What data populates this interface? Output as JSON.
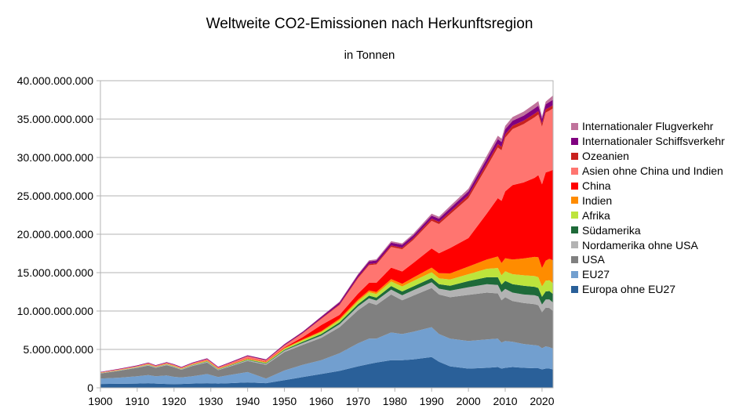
{
  "chart_data": {
    "type": "area",
    "stacked": true,
    "title": "Weltweite CO2-Emissionen nach Herkunftsregion",
    "subtitle": "in Tonnen",
    "xlabel": "",
    "ylabel": "",
    "xlim": [
      1900,
      2023
    ],
    "ylim": [
      0,
      40000000000
    ],
    "grid": true,
    "legend_position": "right",
    "x_ticks": [
      "1900",
      "1910",
      "1920",
      "1930",
      "1940",
      "1950",
      "1960",
      "1970",
      "1980",
      "1990",
      "2000",
      "2010",
      "2020"
    ],
    "y_ticks": [
      "0",
      "5.000.000.000",
      "10.000.000.000",
      "15.000.000.000",
      "20.000.000.000",
      "25.000.000.000",
      "30.000.000.000",
      "35.000.000.000",
      "40.000.000.000"
    ],
    "x": [
      1900,
      1905,
      1910,
      1913,
      1915,
      1918,
      1920,
      1922,
      1925,
      1929,
      1932,
      1935,
      1940,
      1945,
      1950,
      1955,
      1960,
      1965,
      1970,
      1973,
      1975,
      1979,
      1982,
      1985,
      1990,
      1992,
      1995,
      2000,
      2005,
      2008,
      2009,
      2010,
      2012,
      2015,
      2018,
      2019,
      2020,
      2021,
      2022,
      2023
    ],
    "series": [
      {
        "name": "Europa ohne EU27",
        "color": "#2a6099",
        "values": [
          0.5,
          0.52,
          0.55,
          0.6,
          0.55,
          0.5,
          0.48,
          0.5,
          0.55,
          0.6,
          0.55,
          0.6,
          0.7,
          0.6,
          1.0,
          1.4,
          1.8,
          2.2,
          2.8,
          3.1,
          3.3,
          3.6,
          3.6,
          3.7,
          4.0,
          3.4,
          2.8,
          2.5,
          2.6,
          2.7,
          2.5,
          2.6,
          2.7,
          2.6,
          2.55,
          2.55,
          2.4,
          2.5,
          2.5,
          2.4
        ]
      },
      {
        "name": "EU27",
        "color": "#729fcf",
        "values": [
          0.7,
          0.8,
          0.95,
          1.05,
          0.95,
          1.1,
          0.95,
          0.85,
          0.95,
          1.2,
          0.85,
          1.05,
          1.35,
          0.6,
          1.25,
          1.6,
          1.8,
          2.3,
          3.0,
          3.3,
          3.1,
          3.6,
          3.4,
          3.6,
          3.9,
          3.6,
          3.6,
          3.6,
          3.7,
          3.7,
          3.4,
          3.5,
          3.3,
          3.1,
          3.0,
          2.95,
          2.75,
          2.9,
          2.8,
          2.7
        ]
      },
      {
        "name": "USA",
        "color": "#808080",
        "values": [
          0.66,
          0.9,
          1.1,
          1.25,
          1.1,
          1.35,
          1.25,
          1.0,
          1.35,
          1.5,
          0.9,
          1.1,
          1.45,
          1.8,
          2.4,
          2.6,
          2.9,
          3.4,
          4.3,
          4.7,
          4.4,
          4.95,
          4.4,
          4.7,
          5.1,
          5.15,
          5.4,
          6.0,
          6.1,
          5.9,
          5.5,
          5.7,
          5.3,
          5.35,
          5.35,
          5.25,
          4.7,
          5.05,
          5.1,
          4.9
        ]
      },
      {
        "name": "Nordamerika ohne USA",
        "color": "#b3b3b3",
        "values": [
          0.04,
          0.05,
          0.07,
          0.08,
          0.07,
          0.08,
          0.08,
          0.07,
          0.08,
          0.1,
          0.07,
          0.08,
          0.1,
          0.12,
          0.2,
          0.25,
          0.3,
          0.38,
          0.5,
          0.55,
          0.57,
          0.65,
          0.65,
          0.7,
          0.75,
          0.76,
          0.85,
          1.0,
          1.1,
          1.1,
          1.05,
          1.08,
          1.1,
          1.1,
          1.15,
          1.15,
          1.0,
          1.05,
          1.1,
          1.1
        ]
      },
      {
        "name": "Südamerika",
        "color": "#1e6a39",
        "values": [
          0.01,
          0.01,
          0.02,
          0.03,
          0.03,
          0.03,
          0.03,
          0.03,
          0.04,
          0.05,
          0.04,
          0.05,
          0.06,
          0.08,
          0.1,
          0.15,
          0.2,
          0.25,
          0.3,
          0.35,
          0.37,
          0.45,
          0.5,
          0.5,
          0.55,
          0.58,
          0.65,
          0.8,
          0.9,
          1.0,
          1.0,
          1.05,
          1.1,
          1.15,
          1.1,
          1.1,
          1.0,
          1.05,
          1.1,
          1.1
        ]
      },
      {
        "name": "Afrika",
        "color": "#bde43c",
        "values": [
          0.02,
          0.02,
          0.03,
          0.04,
          0.03,
          0.04,
          0.04,
          0.04,
          0.05,
          0.06,
          0.05,
          0.06,
          0.08,
          0.1,
          0.15,
          0.2,
          0.25,
          0.3,
          0.38,
          0.45,
          0.48,
          0.6,
          0.65,
          0.7,
          0.75,
          0.77,
          0.8,
          0.9,
          1.1,
          1.2,
          1.2,
          1.25,
          1.3,
          1.35,
          1.4,
          1.4,
          1.35,
          1.4,
          1.4,
          1.4
        ]
      },
      {
        "name": "Indien",
        "color": "#ff8c00",
        "values": [
          0.03,
          0.04,
          0.04,
          0.05,
          0.04,
          0.05,
          0.05,
          0.04,
          0.05,
          0.06,
          0.05,
          0.05,
          0.06,
          0.06,
          0.08,
          0.1,
          0.12,
          0.17,
          0.2,
          0.22,
          0.25,
          0.3,
          0.35,
          0.45,
          0.6,
          0.67,
          0.8,
          1.0,
          1.2,
          1.5,
          1.6,
          1.7,
          1.9,
          2.2,
          2.5,
          2.6,
          2.4,
          2.6,
          2.8,
          3.0
        ]
      },
      {
        "name": "China",
        "color": "#ff0000",
        "values": [
          0.01,
          0.01,
          0.01,
          0.01,
          0.01,
          0.01,
          0.01,
          0.01,
          0.02,
          0.03,
          0.03,
          0.03,
          0.05,
          0.05,
          0.08,
          0.3,
          0.8,
          0.5,
          0.8,
          1.0,
          1.2,
          1.5,
          1.6,
          1.9,
          2.5,
          2.6,
          3.3,
          3.7,
          6.0,
          7.6,
          8.1,
          8.7,
          9.7,
          9.9,
          10.3,
          10.7,
          10.9,
          11.5,
          11.4,
          11.8
        ]
      },
      {
        "name": "Asien ohne China und Indien",
        "color": "#ff7570",
        "values": [
          0.04,
          0.05,
          0.07,
          0.09,
          0.08,
          0.09,
          0.09,
          0.08,
          0.1,
          0.12,
          0.1,
          0.15,
          0.25,
          0.15,
          0.25,
          0.5,
          0.8,
          1.3,
          2.0,
          2.3,
          2.4,
          2.7,
          2.9,
          3.0,
          3.6,
          3.8,
          4.4,
          5.2,
          6.1,
          6.6,
          6.6,
          7.0,
          7.3,
          7.6,
          7.9,
          7.9,
          7.5,
          7.8,
          7.9,
          8.0
        ]
      },
      {
        "name": "Ozeanien",
        "color": "#c9211e",
        "values": [
          0.01,
          0.01,
          0.01,
          0.02,
          0.02,
          0.02,
          0.02,
          0.02,
          0.02,
          0.03,
          0.02,
          0.03,
          0.03,
          0.03,
          0.05,
          0.06,
          0.08,
          0.1,
          0.13,
          0.15,
          0.16,
          0.18,
          0.2,
          0.22,
          0.28,
          0.29,
          0.32,
          0.38,
          0.42,
          0.44,
          0.44,
          0.44,
          0.44,
          0.45,
          0.45,
          0.45,
          0.43,
          0.43,
          0.43,
          0.43
        ]
      },
      {
        "name": "Internationaler Schiffsverkehr",
        "color": "#800080",
        "values": [
          0.05,
          0.06,
          0.07,
          0.08,
          0.07,
          0.07,
          0.07,
          0.07,
          0.08,
          0.09,
          0.08,
          0.09,
          0.1,
          0.1,
          0.12,
          0.15,
          0.2,
          0.25,
          0.3,
          0.35,
          0.35,
          0.38,
          0.38,
          0.38,
          0.4,
          0.41,
          0.45,
          0.5,
          0.6,
          0.65,
          0.62,
          0.65,
          0.65,
          0.65,
          0.7,
          0.7,
          0.62,
          0.65,
          0.7,
          0.7
        ]
      },
      {
        "name": "Internationaler Flugverkehr",
        "color": "#c0739c",
        "values": [
          0.0,
          0.0,
          0.0,
          0.0,
          0.0,
          0.0,
          0.0,
          0.0,
          0.0,
          0.0,
          0.0,
          0.0,
          0.0,
          0.01,
          0.02,
          0.03,
          0.05,
          0.08,
          0.12,
          0.14,
          0.15,
          0.18,
          0.19,
          0.2,
          0.25,
          0.26,
          0.3,
          0.35,
          0.42,
          0.45,
          0.44,
          0.45,
          0.48,
          0.52,
          0.58,
          0.6,
          0.3,
          0.35,
          0.45,
          0.55
        ]
      }
    ],
    "value_unit_multiplier": 1000000000
  }
}
